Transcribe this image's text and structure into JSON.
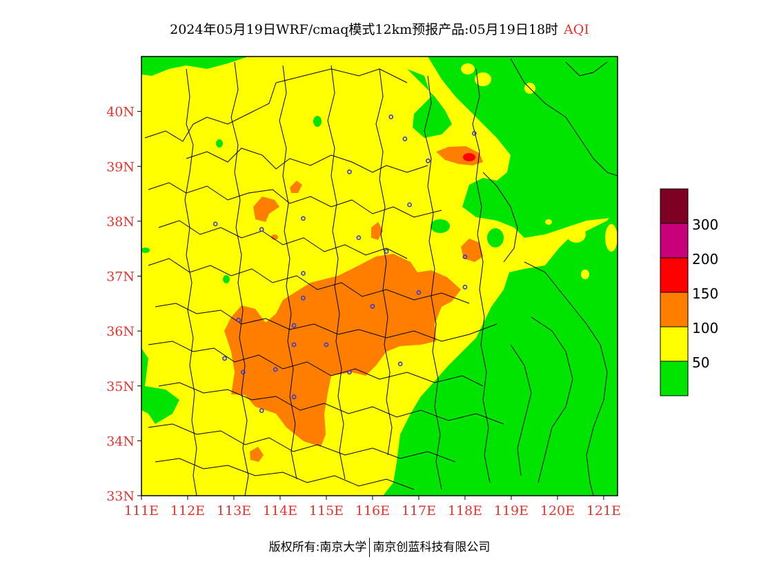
{
  "title": {
    "main": "2024年05月19日WRF/cmaq模式12km预报产品:05月19日18时",
    "variable": "AQI"
  },
  "map": {
    "lon_range": [
      111,
      121.3
    ],
    "lat_range": [
      33,
      41
    ],
    "lat_ticks": [
      "33N",
      "34N",
      "35N",
      "36N",
      "37N",
      "38N",
      "39N",
      "40N"
    ],
    "lon_ticks": [
      "111E",
      "112E",
      "113E",
      "114E",
      "115E",
      "116E",
      "117E",
      "118E",
      "119E",
      "120E",
      "121E"
    ],
    "colors": {
      "green": "#00e400",
      "yellow": "#ffff00",
      "orange": "#ff7e00",
      "red": "#ff0000",
      "purple": "#c8007a",
      "maroon": "#7e0023",
      "tick_label": "#e8332e",
      "station": "#3a3ad0"
    },
    "stations": [
      [
        116.4,
        39.9
      ],
      [
        116.7,
        39.5
      ],
      [
        117.2,
        39.1
      ],
      [
        118.2,
        39.6
      ],
      [
        115.5,
        38.9
      ],
      [
        116.8,
        38.3
      ],
      [
        114.5,
        38.05
      ],
      [
        112.6,
        37.95
      ],
      [
        113.6,
        37.85
      ],
      [
        115.7,
        37.7
      ],
      [
        116.3,
        37.45
      ],
      [
        118.0,
        37.35
      ],
      [
        114.5,
        37.05
      ],
      [
        118.0,
        36.8
      ],
      [
        117.0,
        36.7
      ],
      [
        116.0,
        36.45
      ],
      [
        114.5,
        36.6
      ],
      [
        114.3,
        36.1
      ],
      [
        113.1,
        36.2
      ],
      [
        115.0,
        35.75
      ],
      [
        114.3,
        35.75
      ],
      [
        112.8,
        35.5
      ],
      [
        113.9,
        35.3
      ],
      [
        113.2,
        35.25
      ],
      [
        115.5,
        35.25
      ],
      [
        116.6,
        35.4
      ],
      [
        114.3,
        34.8
      ],
      [
        113.6,
        34.55
      ]
    ]
  },
  "legend": {
    "labels": [
      "300",
      "200",
      "150",
      "100",
      "50"
    ],
    "colors": [
      "#7e0023",
      "#c8007a",
      "#ff0000",
      "#ff7e00",
      "#ffff00",
      "#00e400"
    ]
  },
  "footer": {
    "left": "版权所有:南京大学",
    "right": "南京创蓝科技有限公司"
  }
}
